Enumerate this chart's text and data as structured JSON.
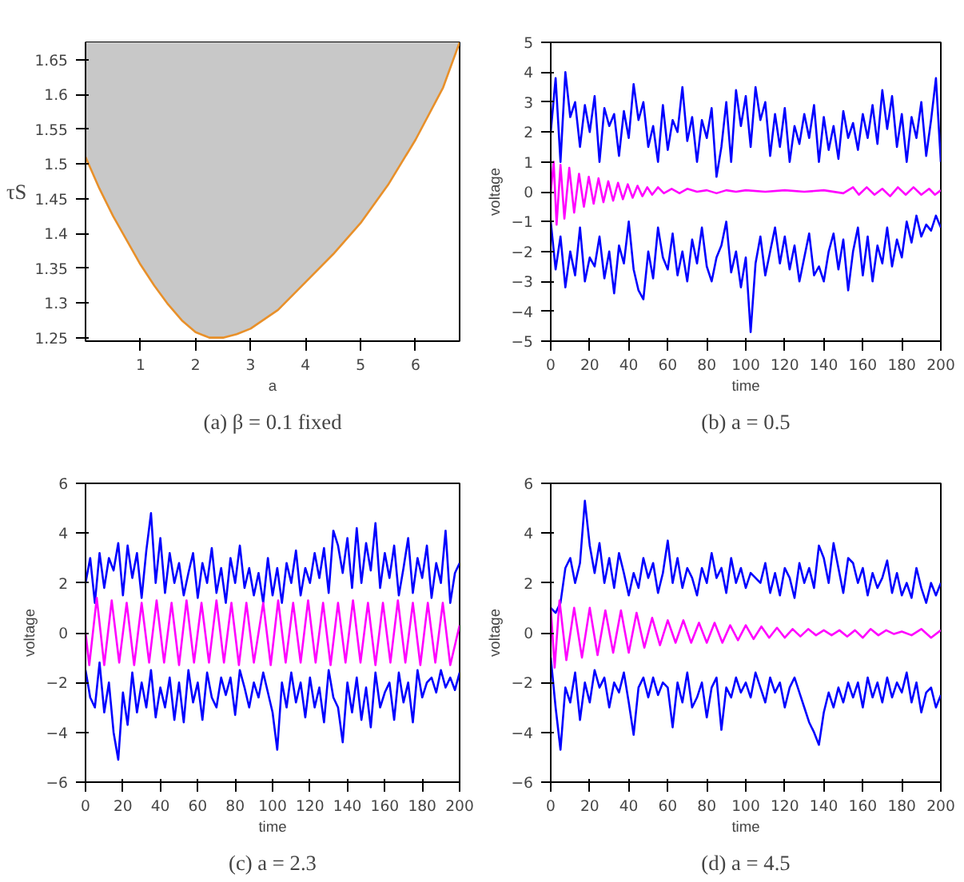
{
  "chart_data": [
    {
      "type": "line",
      "title": "(a) β = 0.1 fixed",
      "xlabel": "a",
      "ylabel": "τS",
      "xlim": [
        0,
        6.8
      ],
      "ylim": [
        1.245,
        1.675
      ],
      "xticks": [
        1,
        2,
        3,
        4,
        5,
        6
      ],
      "yticks": [
        1.25,
        1.3,
        1.35,
        1.4,
        1.45,
        1.5,
        1.55,
        1.6,
        1.65
      ],
      "grid": false,
      "series": [
        {
          "color": "#e8902a",
          "x": [
            0,
            0.25,
            0.5,
            0.75,
            1,
            1.25,
            1.5,
            1.75,
            2,
            2.25,
            2.5,
            2.75,
            3,
            3.5,
            4,
            4.5,
            5,
            5.5,
            6,
            6.5,
            6.8
          ],
          "values": [
            1.51,
            1.465,
            1.425,
            1.39,
            1.355,
            1.325,
            1.298,
            1.275,
            1.258,
            1.25,
            1.25,
            1.255,
            1.263,
            1.29,
            1.33,
            1.37,
            1.415,
            1.47,
            1.535,
            1.61,
            1.675
          ],
          "lower": [
            1.51,
            1.465,
            1.425,
            1.39,
            1.355,
            1.325,
            1.298,
            1.275,
            1.258,
            1.25,
            1.25,
            1.255,
            1.263,
            1.29,
            1.33,
            1.37,
            1.415,
            1.47,
            1.535,
            1.61,
            1.675
          ],
          "upper": [
            1.675,
            1.675,
            1.675,
            1.675,
            1.675,
            1.675,
            1.675,
            1.675,
            1.675,
            1.675,
            1.675,
            1.675,
            1.675,
            1.675,
            1.675,
            1.675,
            1.675,
            1.675,
            1.675,
            1.675,
            1.675
          ]
        }
      ]
    },
    {
      "type": "line",
      "title": "(b) a = 0.5",
      "xlabel": "time",
      "ylabel": "voltage",
      "xlim": [
        0,
        200
      ],
      "ylim": [
        -5,
        5
      ],
      "xticks": [
        0,
        20,
        40,
        60,
        80,
        100,
        120,
        140,
        160,
        180,
        200
      ],
      "yticks": [
        -5,
        -4,
        -3,
        -2,
        -1,
        0,
        1,
        2,
        3,
        4,
        5
      ],
      "grid": false,
      "series": [
        {
          "color": "#0000ff",
          "x": [
            0,
            2.5,
            5,
            7.5,
            10,
            12.5,
            15,
            17.5,
            20,
            22.5,
            25,
            27.5,
            30,
            32.5,
            35,
            37.5,
            40,
            42.5,
            45,
            47.5,
            50,
            52.5,
            55,
            57.5,
            60,
            62.5,
            65,
            67.5,
            70,
            72.5,
            75,
            77.5,
            80,
            82.5,
            85,
            87.5,
            90,
            92.5,
            95,
            97.5,
            100,
            102.5,
            105,
            107.5,
            110,
            112.5,
            115,
            117.5,
            120,
            122.5,
            125,
            127.5,
            130,
            132.5,
            135,
            137.5,
            140,
            142.5,
            145,
            147.5,
            150,
            152.5,
            155,
            157.5,
            160,
            162.5,
            165,
            167.5,
            170,
            172.5,
            175,
            177.5,
            180,
            182.5,
            185,
            187.5,
            190,
            192.5,
            195,
            197.5,
            200
          ],
          "values": [
            2,
            3.8,
            1,
            4,
            2.5,
            3,
            1.5,
            2.9,
            2,
            3.2,
            1,
            2.8,
            2.2,
            2.6,
            1.2,
            2.7,
            1.8,
            3.6,
            2.4,
            3,
            1.5,
            2.2,
            1,
            2.9,
            1.4,
            2.4,
            2,
            3.5,
            1.7,
            2.5,
            1,
            2.4,
            1.8,
            2.8,
            0.5,
            1.5,
            3,
            1,
            3.4,
            2.2,
            3.2,
            1.5,
            3.5,
            2.4,
            3,
            1.2,
            2.6,
            1.5,
            2.8,
            1,
            2.2,
            1.6,
            2.6,
            1.8,
            2.9,
            1,
            2.5,
            1.4,
            2.2,
            1.1,
            2.7,
            1.8,
            2.3,
            1.4,
            2.6,
            1.8,
            2.9,
            1.6,
            3.4,
            2.1,
            3.2,
            1.5,
            2.6,
            1,
            2.5,
            1.8,
            3,
            1.2,
            2.4,
            3.8,
            1
          ]
        },
        {
          "color": "#0000ff",
          "x": [
            0,
            2.5,
            5,
            7.5,
            10,
            12.5,
            15,
            17.5,
            20,
            22.5,
            25,
            27.5,
            30,
            32.5,
            35,
            37.5,
            40,
            42.5,
            45,
            47.5,
            50,
            52.5,
            55,
            57.5,
            60,
            62.5,
            65,
            67.5,
            70,
            72.5,
            75,
            77.5,
            80,
            82.5,
            85,
            87.5,
            90,
            92.5,
            95,
            97.5,
            100,
            102.5,
            105,
            107.5,
            110,
            112.5,
            115,
            117.5,
            120,
            122.5,
            125,
            127.5,
            130,
            132.5,
            135,
            137.5,
            140,
            142.5,
            145,
            147.5,
            150,
            152.5,
            155,
            157.5,
            160,
            162.5,
            165,
            167.5,
            170,
            172.5,
            175,
            177.5,
            180,
            182.5,
            185,
            187.5,
            190,
            192.5,
            195,
            197.5,
            200
          ],
          "values": [
            -1,
            -2.6,
            -1.5,
            -3.2,
            -2,
            -2.8,
            -1.2,
            -3,
            -2.2,
            -2.5,
            -1.5,
            -2.9,
            -2,
            -3.4,
            -1.8,
            -2.4,
            -1,
            -2.6,
            -3.3,
            -3.6,
            -2,
            -2.9,
            -1.2,
            -2.2,
            -2.6,
            -1.4,
            -2.8,
            -2,
            -3,
            -1.6,
            -2.4,
            -1.2,
            -2.5,
            -3,
            -2.2,
            -1.8,
            -1,
            -2.7,
            -2,
            -3.2,
            -2.2,
            -4.7,
            -2.4,
            -1.5,
            -2.8,
            -2,
            -1.2,
            -2.4,
            -1.5,
            -2.6,
            -1.8,
            -3,
            -2.2,
            -1.4,
            -2.8,
            -2.5,
            -3,
            -2,
            -1.4,
            -2.6,
            -1.6,
            -3.3,
            -2,
            -1.2,
            -2.8,
            -1.5,
            -3,
            -1.8,
            -2.4,
            -1.2,
            -2.5,
            -1.6,
            -2.2,
            -1,
            -1.7,
            -0.8,
            -1.5,
            -1.1,
            -1.3,
            -0.8,
            -1.2
          ]
        },
        {
          "color": "#ff00ff",
          "x": [
            0,
            1.5,
            3,
            5,
            7,
            9.5,
            12,
            14.5,
            17,
            19.5,
            22,
            24.5,
            27,
            29.5,
            32,
            34.5,
            37,
            39.5,
            42,
            44.5,
            47,
            49.5,
            52,
            55,
            58,
            62,
            66,
            70,
            75,
            80,
            85,
            90,
            95,
            100,
            110,
            120,
            130,
            140,
            150,
            155,
            158,
            162,
            166,
            170,
            174,
            178,
            182,
            186,
            190,
            194,
            197,
            200
          ],
          "values": [
            0,
            1,
            -1.1,
            0.9,
            -0.9,
            0.8,
            -0.7,
            0.6,
            -0.5,
            0.5,
            -0.4,
            0.45,
            -0.35,
            0.35,
            -0.3,
            0.3,
            -0.25,
            0.25,
            -0.2,
            0.2,
            -0.15,
            0.15,
            -0.1,
            0.15,
            -0.05,
            0.1,
            -0.05,
            0.1,
            0,
            0.05,
            -0.05,
            0.05,
            0,
            0.05,
            0,
            0.05,
            0,
            0.05,
            -0.05,
            0.15,
            -0.1,
            0.15,
            -0.1,
            0.1,
            -0.15,
            0.15,
            -0.1,
            0.15,
            -0.1,
            0.1,
            -0.1,
            0.05
          ]
        }
      ]
    },
    {
      "type": "line",
      "title": "(c) a = 2.3",
      "xlabel": "time",
      "ylabel": "voltage",
      "xlim": [
        0,
        200
      ],
      "ylim": [
        -6,
        6
      ],
      "xticks": [
        0,
        20,
        40,
        60,
        80,
        100,
        120,
        140,
        160,
        180,
        200
      ],
      "yticks": [
        -6,
        -4,
        -2,
        0,
        2,
        4,
        6
      ],
      "grid": false,
      "series": [
        {
          "color": "#0000ff",
          "x": [
            0,
            2.5,
            5,
            7.5,
            10,
            12.5,
            15,
            17.5,
            20,
            22.5,
            25,
            27.5,
            30,
            32.5,
            35,
            37.5,
            40,
            42.5,
            45,
            47.5,
            50,
            52.5,
            55,
            57.5,
            60,
            62.5,
            65,
            67.5,
            70,
            72.5,
            75,
            77.5,
            80,
            82.5,
            85,
            87.5,
            90,
            92.5,
            95,
            97.5,
            100,
            102.5,
            105,
            107.5,
            110,
            112.5,
            115,
            117.5,
            120,
            122.5,
            125,
            127.5,
            130,
            132.5,
            135,
            137.5,
            140,
            142.5,
            145,
            147.5,
            150,
            152.5,
            155,
            157.5,
            160,
            162.5,
            165,
            167.5,
            170,
            172.5,
            175,
            177.5,
            180,
            182.5,
            185,
            187.5,
            190,
            192.5,
            195,
            197.5,
            200
          ],
          "values": [
            2,
            3,
            1.2,
            3.2,
            1.8,
            3,
            2.5,
            3.6,
            1.5,
            3.5,
            2.2,
            3.2,
            1.4,
            3.3,
            4.8,
            2,
            3.8,
            1.6,
            3.2,
            2,
            2.8,
            1.5,
            2.4,
            3.2,
            1.4,
            2.8,
            2,
            3.4,
            1.6,
            2.6,
            1.2,
            3,
            2,
            3.5,
            1.8,
            2.6,
            1.5,
            2.4,
            1.2,
            3,
            1.5,
            2.6,
            1.2,
            2.8,
            2,
            3.3,
            1.5,
            2.6,
            2,
            3.2,
            2.2,
            3.4,
            1.6,
            4.1,
            3.5,
            2.4,
            3.8,
            1.8,
            4.2,
            2,
            3.6,
            2.5,
            4.4,
            1.8,
            3.2,
            2.2,
            3.5,
            1.5,
            2.6,
            3.8,
            1.6,
            3,
            2.2,
            3.5,
            1.4,
            2.8,
            2,
            4.1,
            1.2,
            2.4,
            2.8
          ]
        },
        {
          "color": "#0000ff",
          "x": [
            0,
            2.5,
            5,
            7.5,
            10,
            12.5,
            15,
            17.5,
            20,
            22.5,
            25,
            27.5,
            30,
            32.5,
            35,
            37.5,
            40,
            42.5,
            45,
            47.5,
            50,
            52.5,
            55,
            57.5,
            60,
            62.5,
            65,
            67.5,
            70,
            72.5,
            75,
            77.5,
            80,
            82.5,
            85,
            87.5,
            90,
            92.5,
            95,
            97.5,
            100,
            102.5,
            105,
            107.5,
            110,
            112.5,
            115,
            117.5,
            120,
            122.5,
            125,
            127.5,
            130,
            132.5,
            135,
            137.5,
            140,
            142.5,
            145,
            147.5,
            150,
            152.5,
            155,
            157.5,
            160,
            162.5,
            165,
            167.5,
            170,
            172.5,
            175,
            177.5,
            180,
            182.5,
            185,
            187.5,
            190,
            192.5,
            195,
            197.5,
            200
          ],
          "values": [
            -1.5,
            -2.6,
            -3,
            -1.2,
            -3.2,
            -2,
            -4,
            -5.1,
            -2.4,
            -3.7,
            -1.6,
            -3.2,
            -2,
            -3,
            -1.5,
            -3.4,
            -2.2,
            -3,
            -1.8,
            -3.5,
            -2,
            -3.6,
            -1.5,
            -2.8,
            -2,
            -3.5,
            -1.6,
            -2.6,
            -3,
            -1.8,
            -2.5,
            -1.8,
            -3.3,
            -1.5,
            -2.2,
            -3,
            -2,
            -2.6,
            -1.6,
            -2.4,
            -3.2,
            -4.7,
            -2,
            -3,
            -1.6,
            -2.8,
            -2,
            -3.4,
            -1.8,
            -3,
            -2.2,
            -3.6,
            -1.5,
            -2.6,
            -3,
            -4.4,
            -2,
            -3.2,
            -1.8,
            -3.5,
            -2.2,
            -3.8,
            -1.6,
            -3,
            -2.4,
            -2,
            -3.5,
            -1.6,
            -2.8,
            -2,
            -3.6,
            -1.5,
            -2.6,
            -2,
            -1.8,
            -2.4,
            -1.5,
            -2.2,
            -1.8,
            -2.3,
            -1.6
          ]
        },
        {
          "color": "#ff00ff",
          "x": [
            0,
            2,
            6,
            10,
            14,
            18,
            22,
            26,
            30,
            34,
            38,
            42,
            46,
            50,
            54,
            58,
            62,
            66,
            70,
            74,
            78,
            82,
            86,
            90,
            95,
            99,
            103,
            107,
            111,
            115,
            119,
            123,
            127,
            131,
            135,
            139,
            143,
            147,
            151,
            155,
            159,
            163,
            167,
            171,
            175,
            179,
            183,
            187,
            191,
            195,
            200
          ],
          "values": [
            0,
            -1.3,
            1.4,
            -1.3,
            1.3,
            -1.2,
            1.2,
            -1.3,
            1.2,
            -1.2,
            1.3,
            -1.2,
            1.2,
            -1.3,
            1.3,
            -1.2,
            1.2,
            -1.2,
            1.3,
            -1.2,
            1.2,
            -1.3,
            1.2,
            -1.2,
            1.2,
            -1.3,
            1.3,
            -1.2,
            1.2,
            -1.2,
            1.3,
            -1.2,
            1.2,
            -1.3,
            1.2,
            -1.2,
            1.3,
            -1.2,
            1.2,
            -1.3,
            1.2,
            -1.2,
            1.3,
            -1.2,
            1.2,
            -1.3,
            1.2,
            -1.2,
            1.2,
            -1.3,
            0.3
          ]
        }
      ]
    },
    {
      "type": "line",
      "title": "(d) a = 4.5",
      "xlabel": "time",
      "ylabel": "voltage",
      "xlim": [
        0,
        200
      ],
      "ylim": [
        -6,
        6
      ],
      "xticks": [
        0,
        20,
        40,
        60,
        80,
        100,
        120,
        140,
        160,
        180,
        200
      ],
      "yticks": [
        -6,
        -4,
        -2,
        0,
        2,
        4,
        6
      ],
      "grid": false,
      "series": [
        {
          "color": "#0000ff",
          "x": [
            0,
            2.5,
            5,
            7.5,
            10,
            12.5,
            15,
            17.5,
            20,
            22.5,
            25,
            27.5,
            30,
            32.5,
            35,
            37.5,
            40,
            42.5,
            45,
            47.5,
            50,
            52.5,
            55,
            57.5,
            60,
            62.5,
            65,
            67.5,
            70,
            72.5,
            75,
            77.5,
            80,
            82.5,
            85,
            87.5,
            90,
            92.5,
            95,
            97.5,
            100,
            102.5,
            105,
            107.5,
            110,
            112.5,
            115,
            117.5,
            120,
            122.5,
            125,
            127.5,
            130,
            132.5,
            135,
            137.5,
            140,
            142.5,
            145,
            147.5,
            150,
            152.5,
            155,
            157.5,
            160,
            162.5,
            165,
            167.5,
            170,
            172.5,
            175,
            177.5,
            180,
            182.5,
            185,
            187.5,
            190,
            192.5,
            195,
            197.5,
            200
          ],
          "values": [
            1,
            0.8,
            1.2,
            2.6,
            3,
            2,
            2.8,
            5.3,
            3.5,
            2.4,
            3.6,
            2,
            3,
            1.8,
            3.2,
            2.4,
            1.5,
            2.4,
            1.8,
            3,
            2.2,
            2.8,
            1.6,
            2.4,
            3.7,
            2,
            3,
            1.8,
            2.6,
            2.2,
            1.5,
            2.6,
            2,
            3.2,
            2.2,
            2.6,
            1.6,
            3,
            2,
            2.6,
            1.8,
            2.4,
            2.2,
            2,
            2.8,
            1.6,
            2.4,
            1.5,
            2.6,
            2.2,
            1.4,
            2.8,
            2,
            2.6,
            1.8,
            3.5,
            3,
            2,
            3.6,
            2.6,
            1.6,
            3,
            2.8,
            2,
            2.6,
            1.5,
            2.4,
            1.8,
            2.2,
            2.9,
            1.6,
            2.4,
            1.5,
            2,
            1.4,
            2.6,
            1.8,
            1.2,
            2,
            1.5,
            2
          ]
        },
        {
          "color": "#0000ff",
          "x": [
            0,
            2.5,
            5,
            7.5,
            10,
            12.5,
            15,
            17.5,
            20,
            22.5,
            25,
            27.5,
            30,
            32.5,
            35,
            37.5,
            40,
            42.5,
            45,
            47.5,
            50,
            52.5,
            55,
            57.5,
            60,
            62.5,
            65,
            67.5,
            70,
            72.5,
            75,
            77.5,
            80,
            82.5,
            85,
            87.5,
            90,
            92.5,
            95,
            97.5,
            100,
            102.5,
            105,
            107.5,
            110,
            112.5,
            115,
            117.5,
            120,
            122.5,
            125,
            127.5,
            130,
            132.5,
            135,
            137.5,
            140,
            142.5,
            145,
            147.5,
            150,
            152.5,
            155,
            157.5,
            160,
            162.5,
            165,
            167.5,
            170,
            172.5,
            175,
            177.5,
            180,
            182.5,
            185,
            187.5,
            190,
            192.5,
            195,
            197.5,
            200
          ],
          "values": [
            -1,
            -3,
            -4.7,
            -2.2,
            -2.8,
            -1.6,
            -3.5,
            -2,
            -2.8,
            -1.5,
            -2.2,
            -1.8,
            -3,
            -2,
            -2.4,
            -1.6,
            -2.8,
            -4.1,
            -2.2,
            -1.8,
            -2.6,
            -1.8,
            -2.5,
            -2,
            -2.2,
            -3.8,
            -2,
            -2.8,
            -1.6,
            -3,
            -2.6,
            -2,
            -3.4,
            -2.2,
            -1.8,
            -3.9,
            -2.2,
            -2.6,
            -1.8,
            -2.4,
            -2,
            -2.6,
            -1.6,
            -2.2,
            -2.8,
            -1.8,
            -2.4,
            -2,
            -3,
            -2.2,
            -1.8,
            -2.4,
            -3,
            -3.6,
            -4,
            -4.5,
            -3.2,
            -2.4,
            -3,
            -2.2,
            -2.8,
            -2,
            -2.6,
            -2,
            -3,
            -1.8,
            -2.6,
            -2,
            -2.8,
            -1.8,
            -2.6,
            -2,
            -2.4,
            -1.6,
            -2.8,
            -2,
            -3.2,
            -2.4,
            -2.2,
            -3,
            -2.5
          ]
        },
        {
          "color": "#ff00ff",
          "x": [
            0,
            2,
            4.5,
            8,
            12,
            16,
            20,
            24,
            28,
            32,
            36,
            40,
            44,
            48,
            52,
            56,
            60,
            64,
            68,
            72,
            76,
            80,
            84,
            88,
            92,
            96,
            100,
            104,
            108,
            112,
            116,
            120,
            124,
            128,
            132,
            136,
            140,
            144,
            148,
            152,
            156,
            160,
            164,
            168,
            172,
            176,
            180,
            185,
            190,
            195,
            200
          ],
          "values": [
            1,
            -1.4,
            1.3,
            -1.1,
            1,
            -1,
            1,
            -0.9,
            0.9,
            -0.8,
            0.9,
            -0.8,
            0.8,
            -0.6,
            0.6,
            -0.5,
            0.5,
            -0.4,
            0.5,
            -0.4,
            0.4,
            -0.4,
            0.4,
            -0.4,
            0.3,
            -0.3,
            0.3,
            -0.25,
            0.25,
            -0.2,
            0.2,
            -0.2,
            0.15,
            -0.15,
            0.15,
            -0.1,
            0.1,
            -0.1,
            0.1,
            -0.15,
            0.1,
            -0.2,
            0.15,
            -0.1,
            0.1,
            -0.05,
            0.05,
            -0.1,
            0.15,
            -0.2,
            0.1
          ]
        }
      ]
    }
  ]
}
